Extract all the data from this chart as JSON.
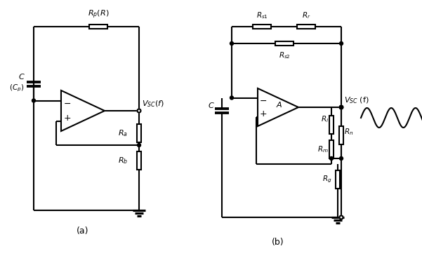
{
  "bg_color": "#ffffff",
  "line_color": "#000000",
  "line_width": 1.5,
  "fig_width": 6.01,
  "fig_height": 3.68,
  "label_a": "(a)",
  "label_b": "(b)"
}
